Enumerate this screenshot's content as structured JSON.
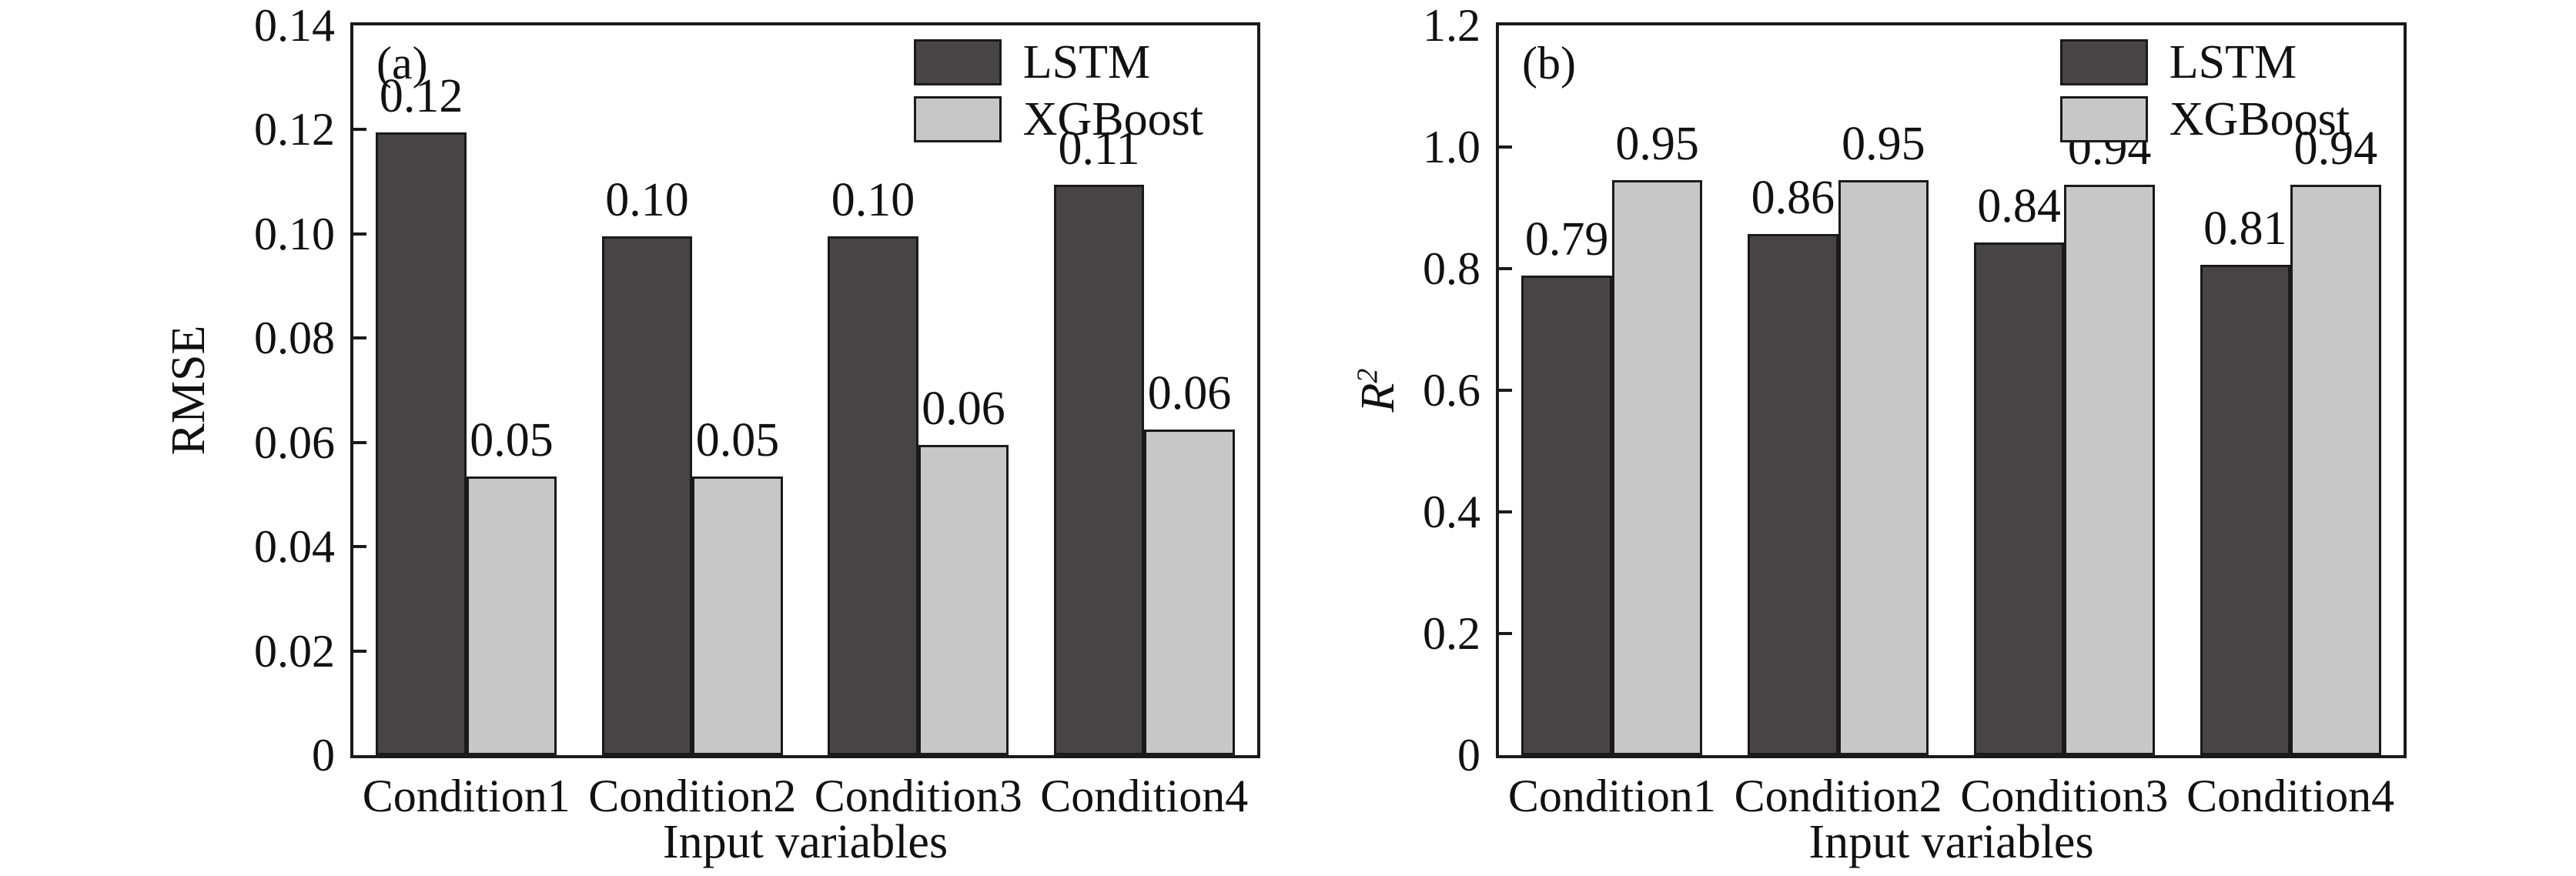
{
  "figure": {
    "background": "#ffffff",
    "colors": {
      "lstm": "#484445",
      "xgboost": "#c7c7c7",
      "bar_border": "#1a1a1a",
      "axis": "#1a1a1a",
      "text": "#111111"
    },
    "legend_items": [
      "LSTM",
      "XGBoost"
    ]
  },
  "chart_data": [
    {
      "type": "bar",
      "panel_label": "(a)",
      "ylabel": "RMSE",
      "ylabel_italic": false,
      "ylabel_sup": "",
      "xlabel": "Input variables",
      "categories": [
        "Condition1",
        "Condition2",
        "Condition3",
        "Condition4"
      ],
      "series": [
        {
          "name": "LSTM",
          "color": "#484445",
          "values": [
            0.12,
            0.1,
            0.1,
            0.11
          ],
          "labels": [
            "0.12",
            "0.10",
            "0.10",
            "0.11"
          ],
          "bar_heights": [
            0.1195,
            0.0995,
            0.0995,
            0.1095
          ]
        },
        {
          "name": "XGBoost",
          "color": "#c7c7c7",
          "values": [
            0.05,
            0.05,
            0.06,
            0.06
          ],
          "labels": [
            "0.05",
            "0.05",
            "0.06",
            "0.06"
          ],
          "bar_heights": [
            0.0535,
            0.0535,
            0.0595,
            0.0625
          ]
        }
      ],
      "ylim": [
        0,
        0.14
      ],
      "ytick_values": [
        0,
        0.02,
        0.04,
        0.06,
        0.08,
        0.1,
        0.12,
        0.14
      ],
      "ytick_labels": [
        "0",
        "0.02",
        "0.04",
        "0.06",
        "0.08",
        "0.10",
        "0.12",
        "0.14"
      ],
      "legend_position": "top-right",
      "grid": false
    },
    {
      "type": "bar",
      "panel_label": "(b)",
      "ylabel": "R",
      "ylabel_italic": true,
      "ylabel_sup": "2",
      "xlabel": "Input variables",
      "categories": [
        "Condition1",
        "Condition2",
        "Condition3",
        "Condition4"
      ],
      "series": [
        {
          "name": "LSTM",
          "color": "#484445",
          "values": [
            0.79,
            0.86,
            0.84,
            0.81
          ],
          "labels": [
            "0.79",
            "0.86",
            "0.84",
            "0.81"
          ],
          "bar_heights": [
            0.788,
            0.857,
            0.843,
            0.806
          ]
        },
        {
          "name": "XGBoost",
          "color": "#c7c7c7",
          "values": [
            0.95,
            0.95,
            0.94,
            0.94
          ],
          "labels": [
            "0.95",
            "0.95",
            "0.94",
            "0.94"
          ],
          "bar_heights": [
            0.946,
            0.946,
            0.938,
            0.938
          ]
        }
      ],
      "ylim": [
        0,
        1.2
      ],
      "ytick_values": [
        0,
        0.2,
        0.4,
        0.6,
        0.8,
        1.0,
        1.2
      ],
      "ytick_labels": [
        "0",
        "0.2",
        "0.4",
        "0.6",
        "0.8",
        "1.0",
        "1.2"
      ],
      "legend_position": "top-right",
      "grid": false
    }
  ]
}
